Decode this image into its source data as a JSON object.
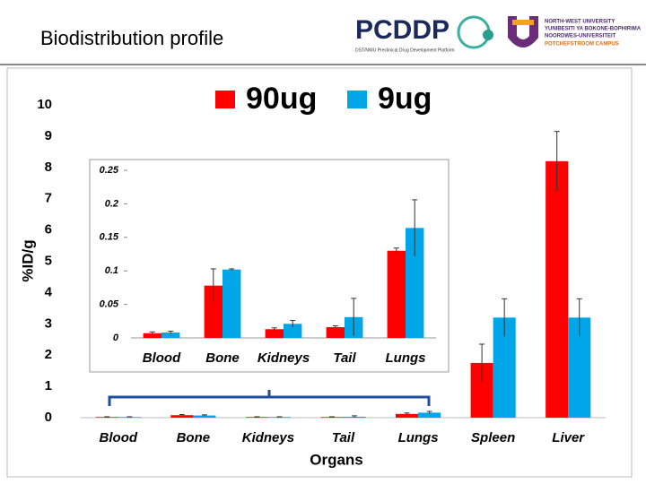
{
  "header": {
    "title": "Biodistribution profile",
    "logo_left": "PCDDP",
    "logo_left_sub": "DST/NWU Preclinical Drug Development Platform",
    "logo_right_lines": [
      "NORTH-WEST UNIVERSITY",
      "YUNIBESITI YA BOKONE-BOPHIRIMA",
      "NOORDWES-UNIVERSITEIT",
      "POTCHEFSTROOM CAMPUS"
    ]
  },
  "chart_data": [
    {
      "type": "bar",
      "ylabel": "%ID/g",
      "xlabel": "Organs",
      "legend": "top",
      "categories": [
        "Blood",
        "Bone",
        "Kidneys",
        "Tail",
        "Lungs",
        "Spleen",
        "Liver"
      ],
      "series": [
        {
          "name": "90ug",
          "color": "#ff0000",
          "values": [
            0.02,
            0.08,
            0.02,
            0.02,
            0.12,
            1.75,
            8.2
          ],
          "errors": [
            0.01,
            0.02,
            0.01,
            0.01,
            0.03,
            0.6,
            0.95
          ]
        },
        {
          "name": "9ug",
          "color": "#00a6e8",
          "values": [
            0.02,
            0.07,
            0.02,
            0.03,
            0.16,
            3.2,
            3.2
          ],
          "errors": [
            0.01,
            0.02,
            0.01,
            0.03,
            0.04,
            0.6,
            0.6
          ]
        }
      ],
      "ylim": [
        0,
        10
      ],
      "yticks": [
        0,
        1,
        2,
        3,
        4,
        5,
        6,
        7,
        8,
        9,
        10
      ]
    },
    {
      "type": "bar",
      "categories": [
        "Blood",
        "Bone",
        "Kidneys",
        "Tail",
        "Lungs"
      ],
      "series": [
        {
          "name": "90ug",
          "color": "#ff0000",
          "values": [
            0.007,
            0.078,
            0.013,
            0.016,
            0.13
          ],
          "errors": [
            0.002,
            0.025,
            0.002,
            0.002,
            0.004
          ]
        },
        {
          "name": "9ug",
          "color": "#00a6e8",
          "values": [
            0.008,
            0.102,
            0.021,
            0.031,
            0.164
          ],
          "errors": [
            0.002,
            0.001,
            0.005,
            0.028,
            0.042
          ]
        }
      ],
      "ylim": [
        0,
        0.25
      ],
      "yticks": [
        0,
        0.05,
        0.1,
        0.15,
        0.2,
        0.25
      ]
    }
  ]
}
